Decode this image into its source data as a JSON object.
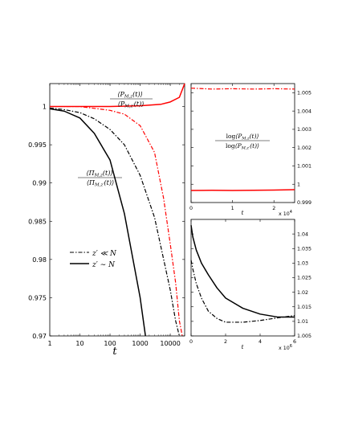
{
  "chart_data": [
    {
      "panel": "main",
      "type": "line",
      "xscale": "log",
      "xlabel": "t",
      "xlim": [
        1,
        30000
      ],
      "ylim": [
        0.97,
        1.003
      ],
      "xticks": [
        "1",
        "10",
        "100",
        "1000",
        "10000"
      ],
      "yticks": [
        "0.97",
        "0.975",
        "0.98",
        "0.985",
        "0.99",
        "0.995",
        "1"
      ],
      "annotations": {
        "ratio_P": "⟨P_{M,z}(t)⟩ / ⟨P_{M,z′}(t)⟩",
        "ratio_Pi": "⟨Π_{M,z}(t)⟩ / ⟨Π_{M,z′}(t)⟩"
      },
      "legend": {
        "placement": "lower-left",
        "entries": [
          {
            "label": "z′ ≪ N",
            "style": "dash-dot"
          },
          {
            "label": "z′ ∼ N",
            "style": "solid"
          }
        ]
      },
      "series": [
        {
          "style": "solid",
          "color": "#ff0000",
          "x": [
            1,
            10,
            100,
            1000,
            5000,
            10000,
            20000,
            30000
          ],
          "y": [
            1.0,
            1.0,
            1.0,
            1.0001,
            1.0003,
            1.0006,
            1.0012,
            1.003
          ]
        },
        {
          "style": "dash-dot",
          "color": "#ff0000",
          "x": [
            1,
            10,
            100,
            300,
            1000,
            3000,
            6000,
            10000,
            15000,
            20000,
            25000
          ],
          "y": [
            1.0,
            1.0,
            0.9995,
            0.999,
            0.9975,
            0.994,
            0.988,
            0.982,
            0.977,
            0.972,
            0.97
          ]
        },
        {
          "style": "dash-dot",
          "color": "#000000",
          "x": [
            1,
            3,
            10,
            30,
            100,
            300,
            1000,
            3000,
            10000,
            15000,
            20000
          ],
          "y": [
            0.9998,
            0.9996,
            0.9992,
            0.9984,
            0.997,
            0.995,
            0.991,
            0.9855,
            0.976,
            0.972,
            0.97
          ]
        },
        {
          "style": "solid",
          "color": "#000000",
          "x": [
            1,
            3,
            10,
            30,
            100,
            300,
            1000,
            1500
          ],
          "y": [
            0.9997,
            0.9994,
            0.9985,
            0.9965,
            0.993,
            0.986,
            0.975,
            0.97
          ]
        }
      ]
    },
    {
      "panel": "top-right",
      "type": "line",
      "xlabel": "t",
      "xlim": [
        0,
        25000
      ],
      "ylim": [
        0.999,
        1.0055
      ],
      "xticks": [
        "0",
        "1",
        "2"
      ],
      "x_multiplier": "x 10",
      "x_multiplier_exp": "4",
      "yticks": [
        "0.999",
        "1",
        "1.001",
        "1.002",
        "1.003",
        "1.004",
        "1.005"
      ],
      "annotation": "log⟨P_{M,z}(t)⟩ / log⟨P_{M,z′}(t)⟩",
      "series": [
        {
          "style": "dash-dot",
          "color": "#ff0000",
          "x": [
            0,
            5000,
            10000,
            15000,
            20000,
            25000
          ],
          "y": [
            1.00525,
            1.0052,
            1.00522,
            1.0052,
            1.00522,
            1.0052
          ]
        },
        {
          "style": "solid",
          "color": "#ff0000",
          "x": [
            0,
            5000,
            10000,
            15000,
            20000,
            25000
          ],
          "y": [
            0.99966,
            0.99967,
            0.99966,
            0.99967,
            0.99968,
            0.9997
          ]
        }
      ]
    },
    {
      "panel": "bottom-right",
      "type": "line",
      "xlabel": "t",
      "xlim": [
        0,
        6000000
      ],
      "ylim": [
        1.005,
        1.045
      ],
      "xticks": [
        "0",
        "2",
        "4",
        "6"
      ],
      "x_multiplier": "x 10",
      "x_multiplier_exp": "6",
      "yticks": [
        "1.005",
        "1.01",
        "1.015",
        "1.02",
        "1.025",
        "1.03",
        "1.035",
        "1.04"
      ],
      "series": [
        {
          "style": "solid",
          "color": "#000000",
          "x": [
            0,
            100000,
            300000,
            600000,
            1000000,
            1500000,
            2000000,
            3000000,
            4000000,
            5000000,
            6000000
          ],
          "y": [
            1.043,
            1.039,
            1.0345,
            1.03,
            1.026,
            1.0215,
            1.018,
            1.0145,
            1.0125,
            1.0115,
            1.0115
          ]
        },
        {
          "style": "dash-dot",
          "color": "#000000",
          "x": [
            0,
            100000,
            300000,
            600000,
            1000000,
            1500000,
            2000000,
            3000000,
            4000000,
            5000000,
            6000000
          ],
          "y": [
            1.031,
            1.028,
            1.023,
            1.018,
            1.0135,
            1.011,
            1.0097,
            1.0097,
            1.0103,
            1.0112,
            1.012
          ]
        }
      ]
    }
  ]
}
